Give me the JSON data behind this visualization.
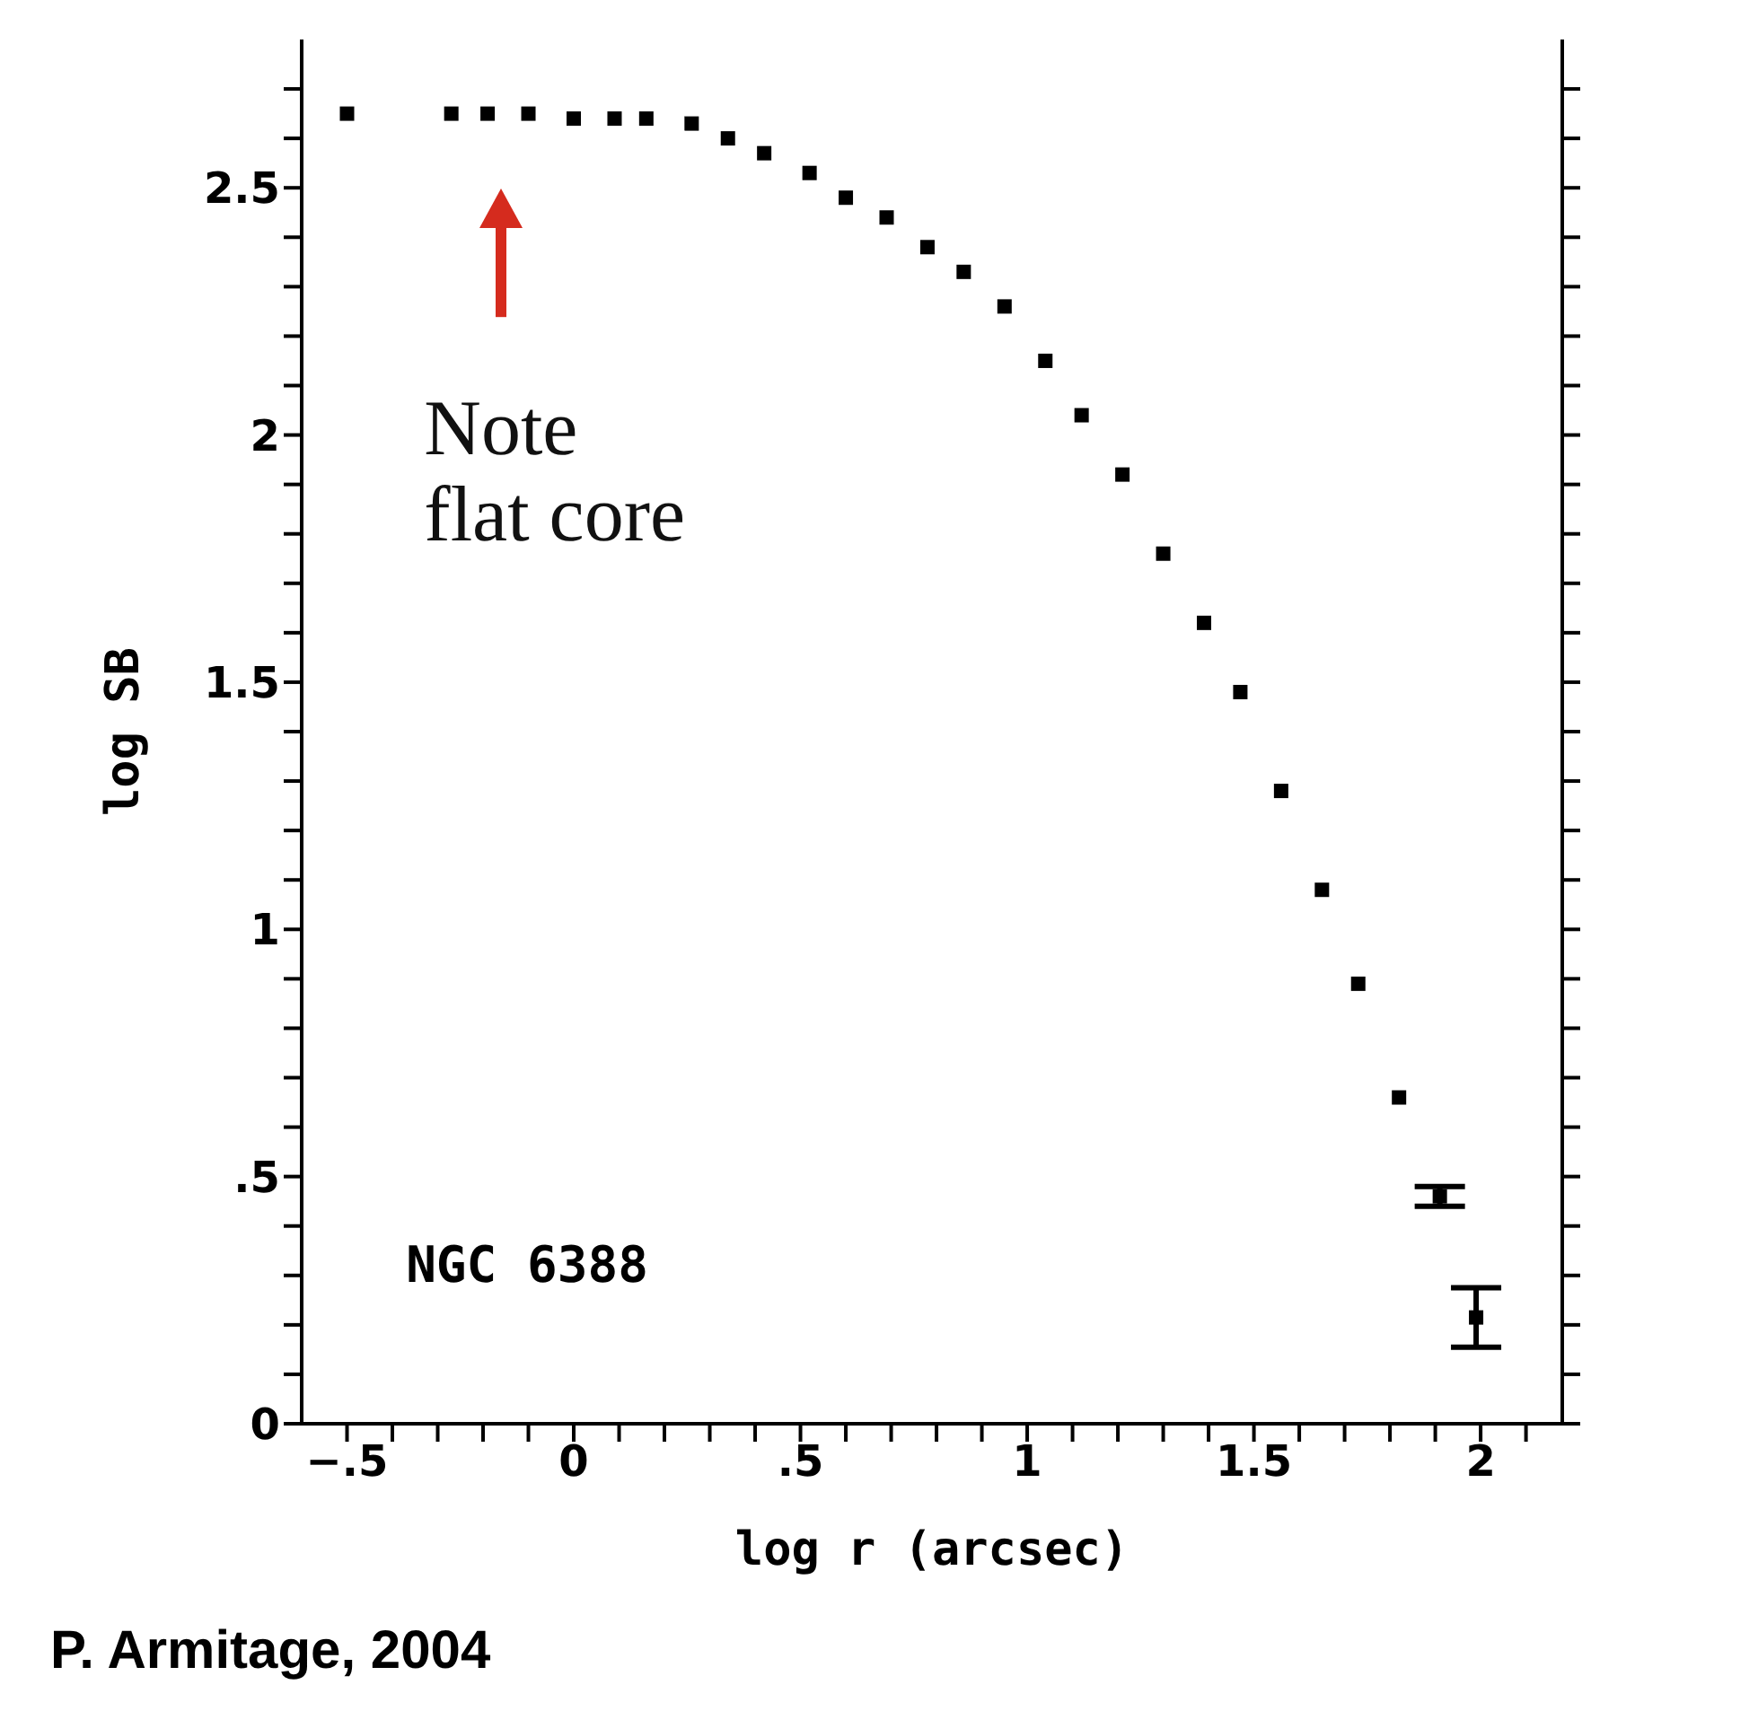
{
  "chart_data": {
    "type": "scatter",
    "xlabel": "log r (arcsec)",
    "ylabel": "log SB",
    "x": [
      -0.5,
      -0.27,
      -0.19,
      -0.1,
      0,
      0.09,
      0.16,
      0.26,
      0.34,
      0.42,
      0.52,
      0.6,
      0.69,
      0.78,
      0.86,
      0.95,
      1.04,
      1.12,
      1.21,
      1.3,
      1.39,
      1.47,
      1.56,
      1.65,
      1.73,
      1.82,
      1.91,
      1.99
    ],
    "series": [
      {
        "color": "#000000",
        "values": [
          2.65,
          2.65,
          2.65,
          2.65,
          2.64,
          2.64,
          2.64,
          2.63,
          2.6,
          2.57,
          2.53,
          2.48,
          2.44,
          2.38,
          2.33,
          2.26,
          2.15,
          2.04,
          1.92,
          1.76,
          1.62,
          1.48,
          1.28,
          1.08,
          0.89,
          0.66,
          0.46,
          0.215
        ],
        "errors": [
          null,
          null,
          null,
          null,
          null,
          null,
          null,
          null,
          null,
          null,
          null,
          null,
          null,
          null,
          null,
          null,
          null,
          null,
          null,
          null,
          null,
          null,
          null,
          null,
          null,
          null,
          0.02,
          0.06
        ]
      }
    ],
    "xlim": [
      -0.6,
      2.18
    ],
    "ylim": [
      0,
      2.8
    ],
    "xticks": [
      {
        "value": -0.5,
        "label": "−.5"
      },
      {
        "value": -0.4,
        "label": null
      },
      {
        "value": -0.3,
        "label": null
      },
      {
        "value": -0.2,
        "label": null
      },
      {
        "value": -0.1,
        "label": null
      },
      0,
      {
        "value": 0.1,
        "label": null
      },
      {
        "value": 0.2,
        "label": null
      },
      {
        "value": 0.3,
        "label": null
      },
      {
        "value": 0.4,
        "label": null
      },
      {
        "value": 0.5,
        "label": ".5"
      },
      {
        "value": 0.6,
        "label": null
      },
      {
        "value": 0.7,
        "label": null
      },
      {
        "value": 0.8,
        "label": null
      },
      {
        "value": 0.9,
        "label": null
      },
      1,
      {
        "value": 1.1,
        "label": null
      },
      {
        "value": 1.2,
        "label": null
      },
      {
        "value": 1.3,
        "label": null
      },
      {
        "value": 1.4,
        "label": null
      },
      1.5,
      {
        "value": 1.6,
        "label": null
      },
      {
        "value": 1.7,
        "label": null
      },
      {
        "value": 1.8,
        "label": null
      },
      {
        "value": 1.9,
        "label": null
      },
      2,
      {
        "value": 2.1,
        "label": null
      }
    ],
    "yticks": [
      0,
      {
        "value": 0.1,
        "label": null
      },
      {
        "value": 0.2,
        "label": null
      },
      {
        "value": 0.3,
        "label": null
      },
      {
        "value": 0.4,
        "label": null
      },
      {
        "value": 0.5,
        "label": ".5"
      },
      {
        "value": 0.6,
        "label": null
      },
      {
        "value": 0.7,
        "label": null
      },
      {
        "value": 0.8,
        "label": null
      },
      {
        "value": 0.9,
        "label": null
      },
      1,
      {
        "value": 1.1,
        "label": null
      },
      {
        "value": 1.2,
        "label": null
      },
      {
        "value": 1.3,
        "label": null
      },
      {
        "value": 1.4,
        "label": null
      },
      1.5,
      {
        "value": 1.6,
        "label": null
      },
      {
        "value": 1.7,
        "label": null
      },
      {
        "value": 1.8,
        "label": null
      },
      {
        "value": 1.9,
        "label": null
      },
      2,
      {
        "value": 2.1,
        "label": null
      },
      {
        "value": 2.2,
        "label": null
      },
      {
        "value": 2.3,
        "label": null
      },
      {
        "value": 2.4,
        "label": null
      },
      2.5,
      {
        "value": 2.6,
        "label": null
      },
      {
        "value": 2.7,
        "label": null
      }
    ],
    "marker": "square",
    "grid": false,
    "legend": false,
    "annotations": [
      "Note flat core",
      "NGC 6388",
      "P. Armitage, 2004"
    ]
  }
}
